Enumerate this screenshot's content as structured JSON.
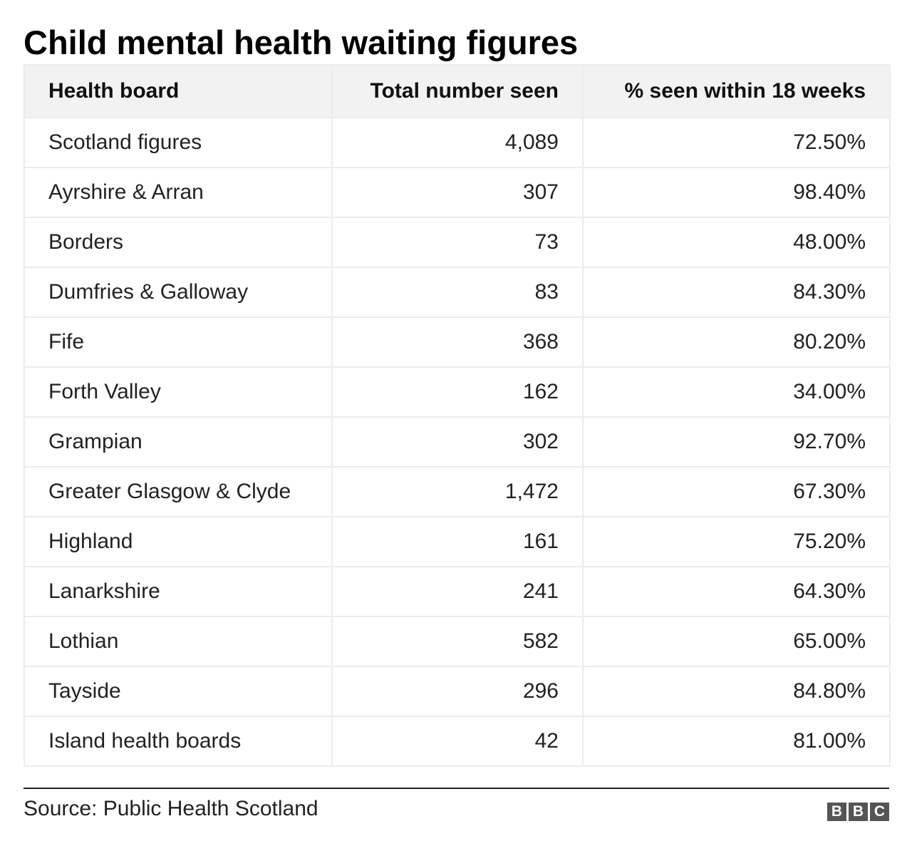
{
  "title": "Child mental health waiting figures",
  "source": "Source: Public Health Scotland",
  "logo": [
    "B",
    "B",
    "C"
  ],
  "chart_data": {
    "type": "table",
    "title": "Child mental health waiting figures",
    "columns": [
      "Health board",
      "Total number seen",
      "% seen within 18 weeks"
    ],
    "rows": [
      [
        "Scotland figures",
        "4,089",
        "72.50%"
      ],
      [
        "Ayrshire & Arran",
        "307",
        "98.40%"
      ],
      [
        "Borders",
        "73",
        "48.00%"
      ],
      [
        "Dumfries & Galloway",
        "83",
        "84.30%"
      ],
      [
        "Fife",
        "368",
        "80.20%"
      ],
      [
        "Forth Valley",
        "162",
        "34.00%"
      ],
      [
        "Grampian",
        "302",
        "92.70%"
      ],
      [
        "Greater Glasgow & Clyde",
        "1,472",
        "67.30%"
      ],
      [
        "Highland",
        "161",
        "75.20%"
      ],
      [
        "Lanarkshire",
        "241",
        "64.30%"
      ],
      [
        "Lothian",
        "582",
        "65.00%"
      ],
      [
        "Tayside",
        "296",
        "84.80%"
      ],
      [
        "Island health boards",
        "42",
        "81.00%"
      ]
    ]
  }
}
